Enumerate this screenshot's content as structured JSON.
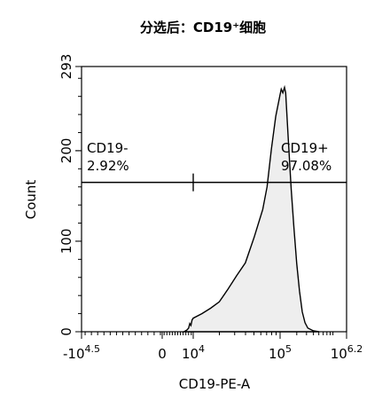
{
  "chart_data": {
    "type": "histogram",
    "title": "分选后：CD19⁺细胞",
    "xlabel": "CD19-PE-A",
    "ylabel": "Count",
    "ylim": [
      0,
      293
    ],
    "y_ticks": [
      {
        "value": 0,
        "label": "0"
      },
      {
        "value": 100,
        "label": "100"
      },
      {
        "value": 200,
        "label": "200"
      },
      {
        "value": 293,
        "label": "293"
      }
    ],
    "x_scale": "biexponential",
    "x_ticks": [
      {
        "base": "-10",
        "exp": "4.5",
        "pos": -4.5
      },
      {
        "base": "0",
        "exp": "",
        "pos": 0
      },
      {
        "base": "10",
        "exp": "4",
        "pos": 4
      },
      {
        "base": "10",
        "exp": "5",
        "pos": 5
      },
      {
        "base": "10",
        "exp": "6.2",
        "pos": 6.2
      }
    ],
    "gate": {
      "y_level": 165,
      "divider_x": 4.0,
      "left": {
        "name": "CD19-",
        "percent": "2.92%"
      },
      "right": {
        "name": "CD19+",
        "percent": "97.08%"
      }
    },
    "series": [
      {
        "fill": "#eeeeee",
        "line": "#000000",
        "points": [
          [
            2.8,
            0
          ],
          [
            3.0,
            1
          ],
          [
            3.2,
            2
          ],
          [
            3.4,
            4
          ],
          [
            3.55,
            9
          ],
          [
            3.7,
            7
          ],
          [
            3.85,
            13
          ],
          [
            4.0,
            15
          ],
          [
            4.1,
            20
          ],
          [
            4.2,
            26
          ],
          [
            4.3,
            33
          ],
          [
            4.4,
            47
          ],
          [
            4.5,
            62
          ],
          [
            4.6,
            76
          ],
          [
            4.7,
            104
          ],
          [
            4.8,
            135
          ],
          [
            4.85,
            160
          ],
          [
            4.9,
            202
          ],
          [
            4.95,
            238
          ],
          [
            5.0,
            262
          ],
          [
            5.02,
            268
          ],
          [
            5.05,
            264
          ],
          [
            5.08,
            270
          ],
          [
            5.1,
            264
          ],
          [
            5.15,
            210
          ],
          [
            5.2,
            158
          ],
          [
            5.25,
            115
          ],
          [
            5.3,
            75
          ],
          [
            5.35,
            45
          ],
          [
            5.4,
            22
          ],
          [
            5.45,
            10
          ],
          [
            5.5,
            4
          ],
          [
            5.6,
            1
          ],
          [
            5.7,
            0
          ]
        ]
      }
    ]
  }
}
